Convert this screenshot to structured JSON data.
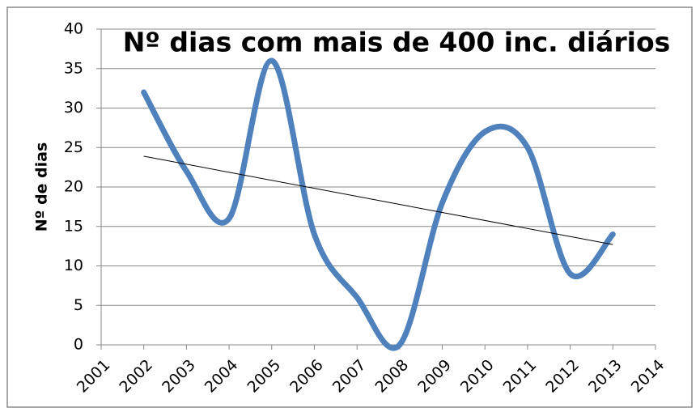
{
  "chart_data": {
    "type": "line",
    "title": "Nº dias com mais de 400 inc. diários",
    "y_label": "Nº de dias",
    "x": [
      2002,
      2003,
      2004,
      2005,
      2006,
      2007,
      2008,
      2009,
      2010,
      2011,
      2012,
      2013
    ],
    "series": [
      {
        "color": "#4f81bd",
        "values": [
          32,
          22,
          16,
          36,
          14,
          6,
          0,
          18,
          27,
          25,
          9,
          14
        ]
      }
    ],
    "trendline": {
      "color": "#000000",
      "x": [
        2002,
        2013
      ],
      "values": [
        23.9,
        12.7
      ]
    },
    "smooth": true,
    "xlim": [
      2001,
      2014
    ],
    "xticks": [
      2001,
      2002,
      2003,
      2004,
      2005,
      2006,
      2007,
      2008,
      2009,
      2010,
      2011,
      2012,
      2013,
      2014
    ],
    "ylim": [
      0,
      40
    ],
    "yticks": [
      0,
      5,
      10,
      15,
      20,
      25,
      30,
      35,
      40
    ],
    "grid": true
  }
}
